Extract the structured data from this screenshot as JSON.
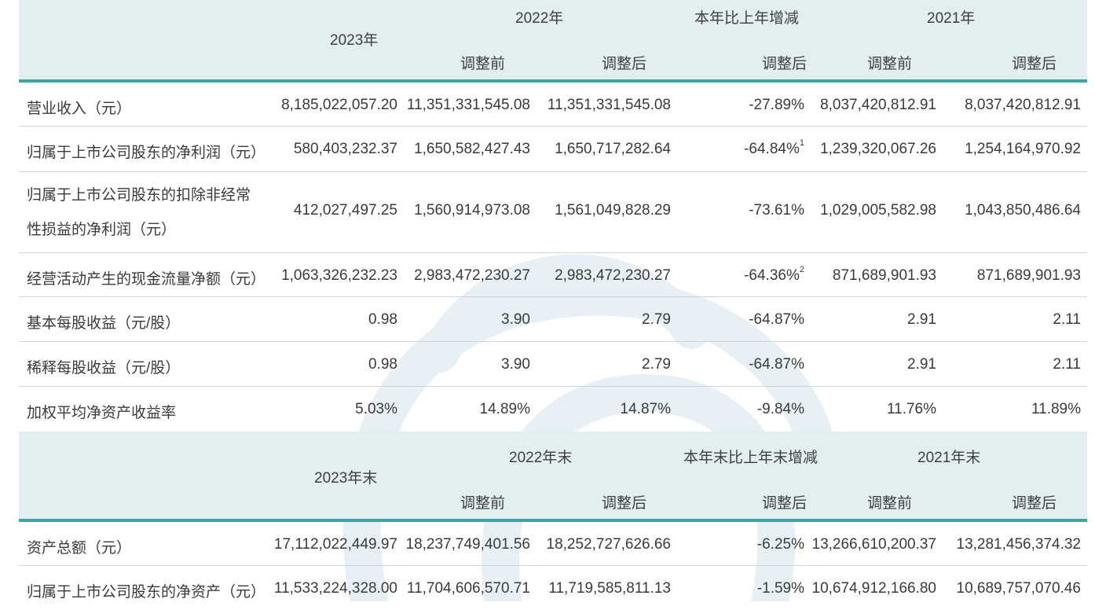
{
  "header1": {
    "y2023": "2023年",
    "y2022": "2022年",
    "change": "本年比上年增减",
    "y2021": "2021年",
    "before": "调整前",
    "after": "调整后"
  },
  "rows1": [
    {
      "label": "营业收入（元）",
      "v": [
        "8,185,022,057.20",
        "11,351,331,545.08",
        "11,351,331,545.08",
        "-27.89%",
        "8,037,420,812.91",
        "8,037,420,812.91"
      ],
      "note": ""
    },
    {
      "label": "归属于上市公司股东的净利润（元）",
      "v": [
        "580,403,232.37",
        "1,650,582,427.43",
        "1,650,717,282.64",
        "-64.84%",
        "1,239,320,067.26",
        "1,254,164,970.92"
      ],
      "note": "1"
    },
    {
      "label_l1": "归属于上市公司股东的扣除非经常",
      "label_l2": "性损益的净利润（元）",
      "v": [
        "412,027,497.25",
        "1,560,914,973.08",
        "1,561,049,828.29",
        "-73.61%",
        "1,029,005,582.98",
        "1,043,850,486.64"
      ]
    },
    {
      "label": "经营活动产生的现金流量净额（元）",
      "v": [
        "1,063,326,232.23",
        "2,983,472,230.27",
        "2,983,472,230.27",
        "-64.36%",
        "871,689,901.93",
        "871,689,901.93"
      ],
      "note": "2"
    },
    {
      "label": "基本每股收益（元/股）",
      "v": [
        "0.98",
        "3.90",
        "2.79",
        "-64.87%",
        "2.91",
        "2.11"
      ]
    },
    {
      "label": "稀释每股收益（元/股）",
      "v": [
        "0.98",
        "3.90",
        "2.79",
        "-64.87%",
        "2.91",
        "2.11"
      ]
    },
    {
      "label": "加权平均净资产收益率",
      "v": [
        "5.03%",
        "14.89%",
        "14.87%",
        "-9.84%",
        "11.76%",
        "11.89%"
      ]
    }
  ],
  "header2": {
    "y2023": "2023年末",
    "y2022": "2022年末",
    "change": "本年末比上年末增减",
    "y2021": "2021年末",
    "before": "调整前",
    "after": "调整后"
  },
  "rows2": [
    {
      "label": "资产总额（元）",
      "v": [
        "17,112,022,449.97",
        "18,237,749,401.56",
        "18,252,727,626.66",
        "-6.25%",
        "13,266,610,200.37",
        "13,281,456,374.32"
      ]
    },
    {
      "label": "归属于上市公司股东的净资产（元）",
      "v": [
        "11,533,224,328.00",
        "11,704,606,570.71",
        "11,719,585,811.13",
        "-1.59%",
        "10,674,912,166.80",
        "10,689,757,070.46"
      ]
    }
  ],
  "colors": {
    "header_bg": "#e3eef0",
    "accent": "#3aa6a3",
    "divider": "#c9d7d9"
  }
}
